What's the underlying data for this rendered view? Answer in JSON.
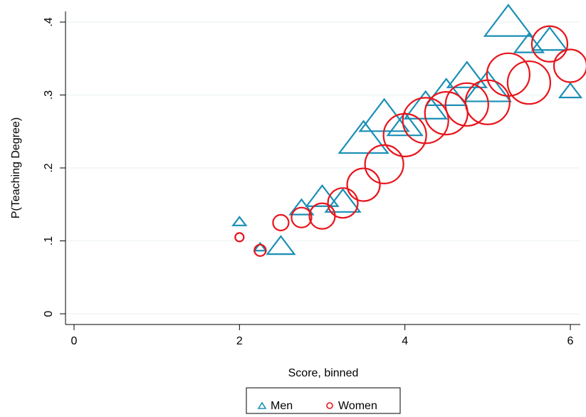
{
  "chart_data": {
    "type": "scatter",
    "xlabel": "Score, binned",
    "ylabel": "P(Teaching Degree)",
    "xlim": [
      -0.1,
      6.12
    ],
    "ylim": [
      -0.025,
      0.42
    ],
    "xticks": [
      0,
      2,
      4,
      6
    ],
    "xtick_labels": [
      "0",
      "2",
      "4",
      "6"
    ],
    "yticks": [
      0,
      0.1,
      0.2,
      0.3,
      0.4
    ],
    "ytick_labels": [
      "0",
      ".1",
      ".2",
      ".3",
      ".4"
    ],
    "grid": "horizontal",
    "legend_position": "bottom",
    "marker_size_note": "",
    "series": [
      {
        "name": "Men",
        "marker": "triangle",
        "color": "#1a8fb5",
        "x": [
          2,
          2.25,
          2.5,
          2.75,
          3,
          3.25,
          3.5,
          3.75,
          4,
          4.25,
          4.5,
          4.75,
          5,
          5.25,
          5.5,
          5.75,
          6
        ],
        "y": [
          0.125,
          0.09,
          0.09,
          0.143,
          0.157,
          0.15,
          0.235,
          0.265,
          0.255,
          0.28,
          0.298,
          0.322,
          0.305,
          0.395,
          0.367,
          0.372,
          0.303
        ],
        "sizes": [
          9,
          8,
          19,
          16,
          22,
          24,
          34,
          34,
          24,
          29,
          28,
          27,
          32,
          33,
          20,
          24,
          15
        ]
      },
      {
        "name": "Women",
        "marker": "circle",
        "color": "#e8141b",
        "x": [
          2,
          2.25,
          2.5,
          2.75,
          3,
          3.25,
          3.5,
          3.75,
          4,
          4.25,
          4.5,
          4.75,
          5,
          5.25,
          5.5,
          5.75,
          6
        ],
        "y": [
          0.105,
          0.087,
          0.125,
          0.132,
          0.134,
          0.152,
          0.177,
          0.205,
          0.245,
          0.265,
          0.275,
          0.287,
          0.29,
          0.328,
          0.317,
          0.37,
          0.34
        ],
        "sizes": [
          6,
          8,
          11,
          14,
          18,
          21,
          23,
          27,
          30,
          32,
          30,
          30,
          31,
          30,
          30,
          25,
          23
        ]
      }
    ]
  }
}
